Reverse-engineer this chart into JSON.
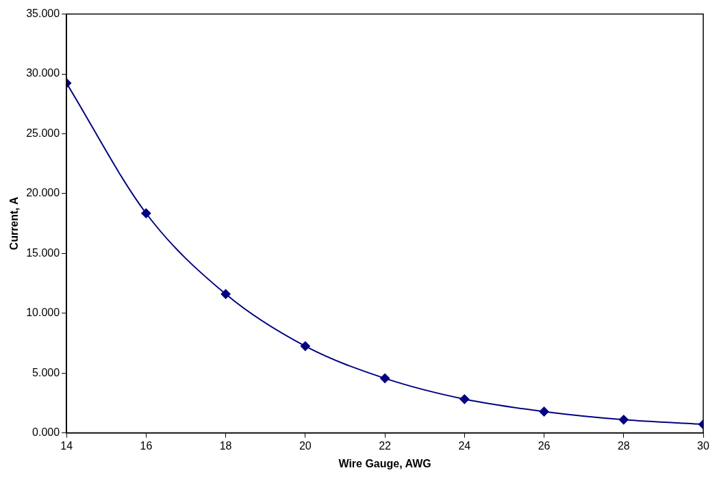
{
  "chart_data": {
    "type": "line",
    "xlabel": "Wire Gauge, AWG",
    "ylabel": "Current, A",
    "x": [
      14,
      16,
      18,
      20,
      22,
      24,
      26,
      28,
      30
    ],
    "series": [
      {
        "color": "#000080",
        "values": [
          29.23,
          18.35,
          11.6,
          7.25,
          4.56,
          2.82,
          1.78,
          1.1,
          0.71
        ]
      }
    ],
    "xlim": [
      14,
      30
    ],
    "xticks": [
      14,
      16,
      18,
      20,
      22,
      24,
      26,
      28,
      30
    ],
    "ylim": [
      0,
      35
    ],
    "yticks": [
      {
        "value": 0,
        "label": "0.000"
      },
      {
        "value": 5,
        "label": "5.000"
      },
      {
        "value": 10,
        "label": "10.000"
      },
      {
        "value": 15,
        "label": "15.000"
      },
      {
        "value": 20,
        "label": "20.000"
      },
      {
        "value": 25,
        "label": "25.000"
      },
      {
        "value": 30,
        "label": "30.000"
      },
      {
        "value": 35,
        "label": "35.000"
      }
    ],
    "grid": false,
    "legend": false,
    "marker": "diamond",
    "line_style": "solid"
  }
}
